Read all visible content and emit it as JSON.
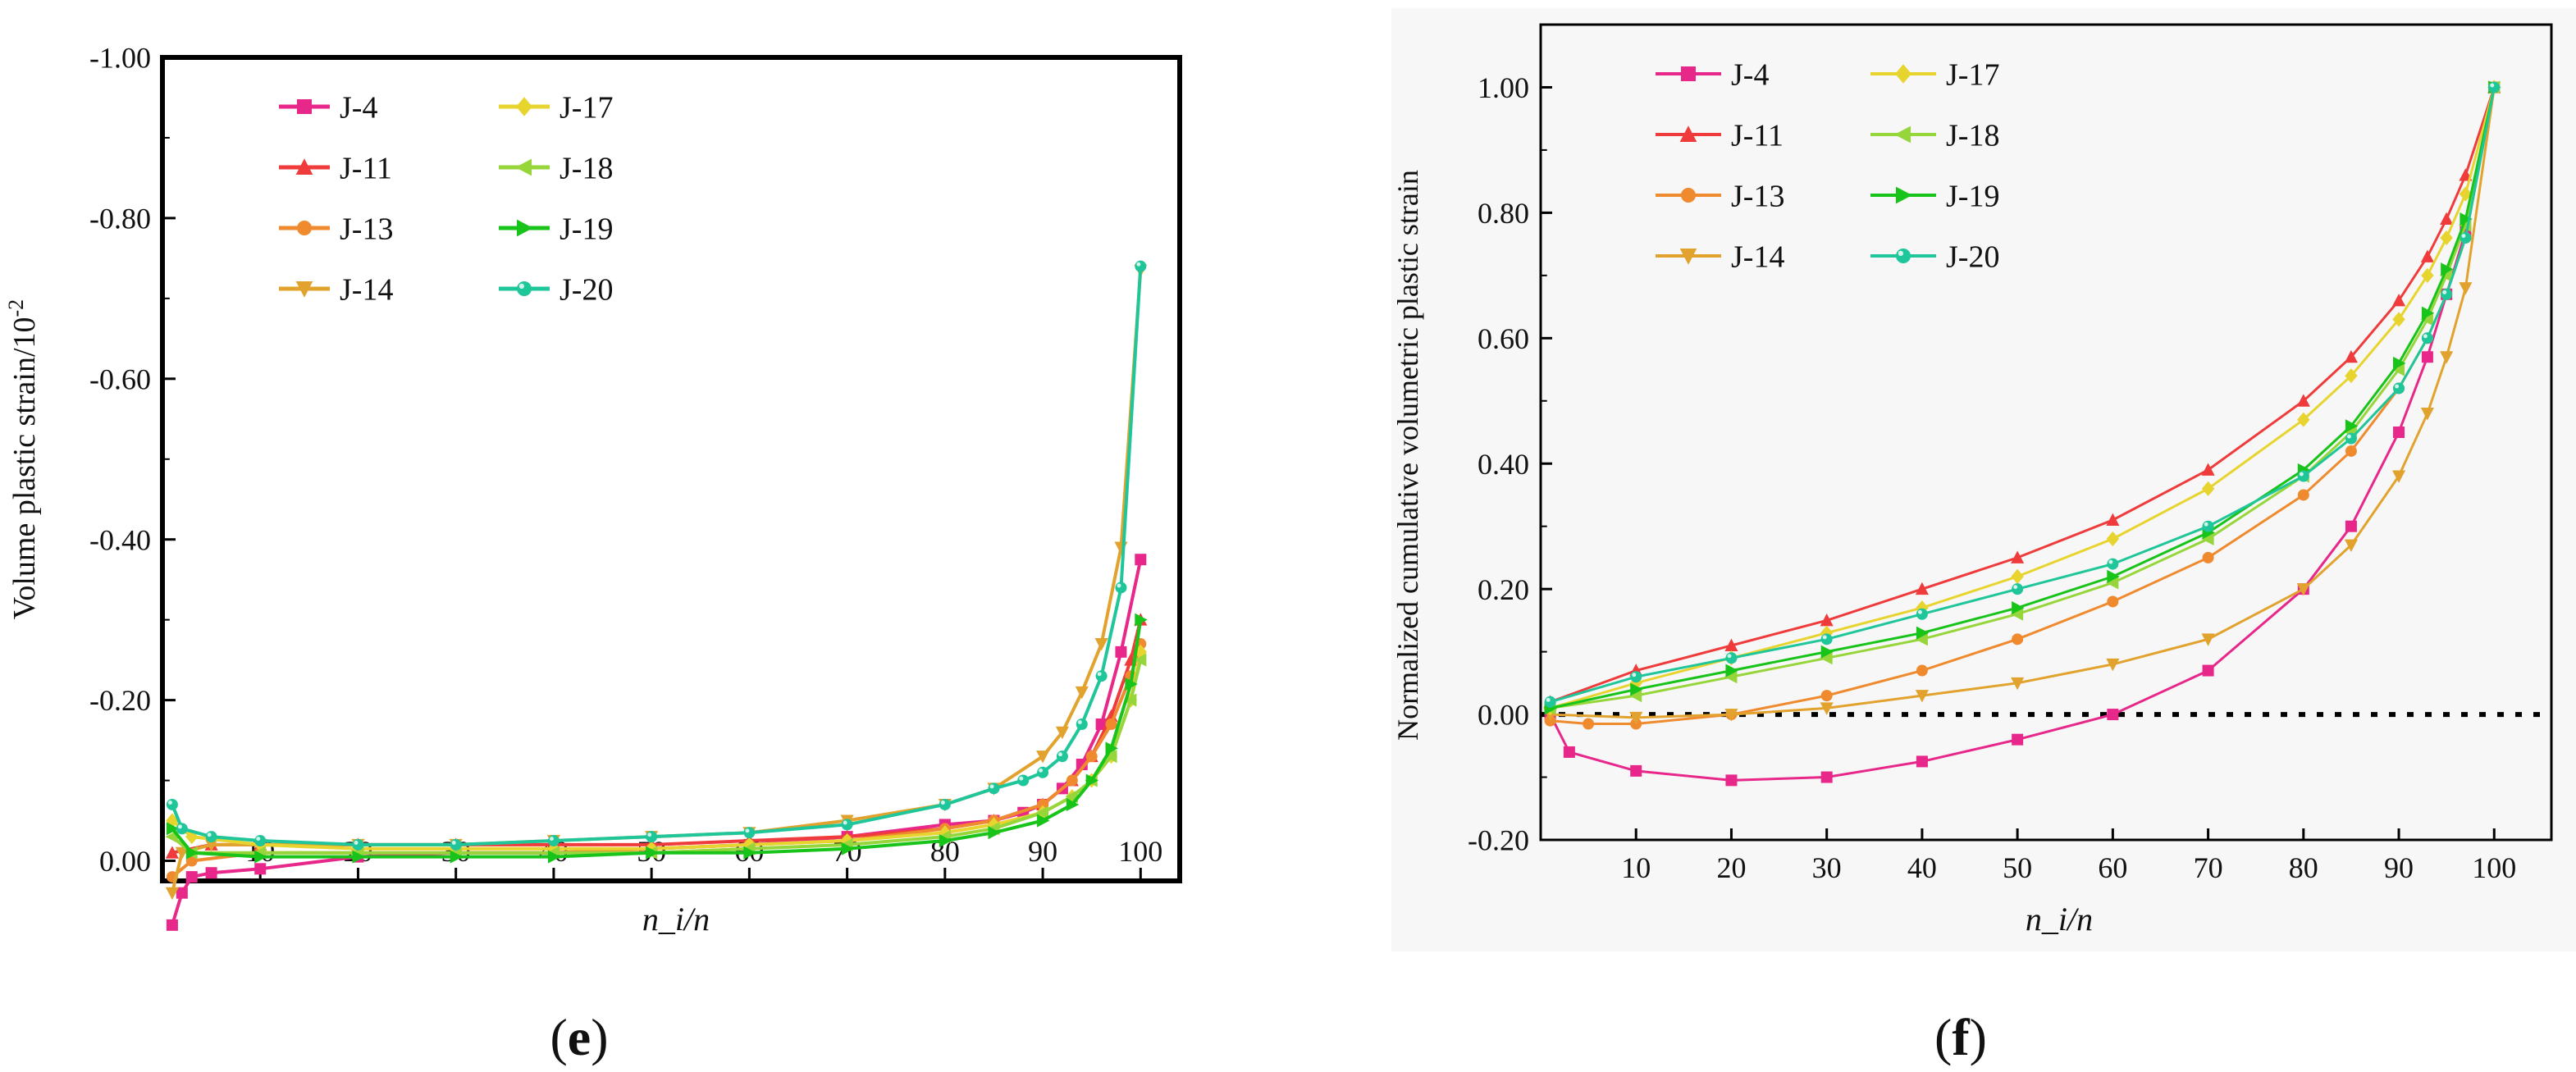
{
  "figure": {
    "panels": [
      {
        "label_text": "e"
      },
      {
        "label_text": "f"
      }
    ]
  },
  "chart_data": [
    {
      "type": "line",
      "panel": "e",
      "xlabel": "n_i/n",
      "ylabel": "Volume plastic  strain/10",
      "ylabel_exponent": "-2",
      "xlim": [
        0,
        104
      ],
      "ylim": [
        0.025,
        -1.0
      ],
      "x_ticks": [
        10,
        20,
        30,
        40,
        50,
        60,
        70,
        80,
        90,
        100
      ],
      "x_tick_labels": [
        "10",
        "20",
        "30",
        "40",
        "50",
        "60",
        "70",
        "80",
        "90",
        "100"
      ],
      "y_ticks": [
        0,
        -0.2,
        -0.4,
        -0.6,
        -0.8,
        -1.0
      ],
      "y_tick_labels": [
        "0.00",
        "-0.20",
        "-0.40",
        "-0.60",
        "-0.80",
        "-1.00"
      ],
      "grid": false,
      "legend_position": "top-left",
      "series": [
        {
          "name": "J-4",
          "color": "#E8278A",
          "marker": "square",
          "x": [
            1,
            2,
            3,
            5,
            10,
            20,
            30,
            40,
            50,
            60,
            70,
            80,
            85,
            88,
            90,
            92,
            94,
            96,
            98,
            100
          ],
          "y": [
            0.08,
            0.04,
            0.02,
            0.015,
            0.01,
            -0.005,
            -0.01,
            -0.01,
            -0.015,
            -0.02,
            -0.03,
            -0.045,
            -0.05,
            -0.06,
            -0.07,
            -0.09,
            -0.12,
            -0.17,
            -0.26,
            -0.375
          ]
        },
        {
          "name": "J-11",
          "color": "#EF3B3B",
          "marker": "triangle-up",
          "x": [
            1,
            5,
            10,
            20,
            30,
            40,
            50,
            60,
            70,
            80,
            85,
            90,
            93,
            95,
            97,
            99,
            100
          ],
          "y": [
            -0.01,
            -0.02,
            -0.02,
            -0.02,
            -0.02,
            -0.02,
            -0.02,
            -0.025,
            -0.03,
            -0.04,
            -0.05,
            -0.07,
            -0.1,
            -0.13,
            -0.18,
            -0.25,
            -0.3
          ]
        },
        {
          "name": "J-13",
          "color": "#F08A2E",
          "marker": "circle",
          "x": [
            1,
            3,
            10,
            20,
            30,
            40,
            50,
            60,
            70,
            80,
            85,
            90,
            93,
            95,
            97,
            99,
            100
          ],
          "y": [
            0.02,
            0.0,
            -0.01,
            -0.01,
            -0.01,
            -0.01,
            -0.015,
            -0.02,
            -0.025,
            -0.04,
            -0.05,
            -0.07,
            -0.1,
            -0.13,
            -0.17,
            -0.23,
            -0.27
          ]
        },
        {
          "name": "J-14",
          "color": "#E2A32E",
          "marker": "triangle-down",
          "x": [
            1,
            2,
            5,
            10,
            20,
            30,
            40,
            50,
            60,
            70,
            80,
            85,
            90,
            92,
            94,
            96,
            98,
            100
          ],
          "y": [
            0.04,
            -0.01,
            -0.02,
            -0.02,
            -0.02,
            -0.02,
            -0.025,
            -0.03,
            -0.035,
            -0.05,
            -0.07,
            -0.09,
            -0.13,
            -0.16,
            -0.21,
            -0.27,
            -0.39,
            -0.735
          ]
        },
        {
          "name": "J-17",
          "color": "#E8D42E",
          "marker": "diamond",
          "x": [
            1,
            3,
            10,
            20,
            30,
            40,
            50,
            60,
            70,
            80,
            85,
            90,
            93,
            95,
            97,
            99,
            100
          ],
          "y": [
            -0.05,
            -0.03,
            -0.02,
            -0.015,
            -0.015,
            -0.015,
            -0.015,
            -0.02,
            -0.025,
            -0.035,
            -0.045,
            -0.06,
            -0.08,
            -0.1,
            -0.13,
            -0.2,
            -0.26
          ]
        },
        {
          "name": "J-18",
          "color": "#96D63A",
          "marker": "triangle-left",
          "x": [
            1,
            3,
            10,
            20,
            30,
            40,
            50,
            60,
            70,
            80,
            85,
            90,
            93,
            95,
            97,
            99,
            100
          ],
          "y": [
            -0.03,
            -0.01,
            -0.01,
            -0.01,
            -0.01,
            -0.01,
            -0.01,
            -0.015,
            -0.02,
            -0.03,
            -0.04,
            -0.06,
            -0.08,
            -0.1,
            -0.13,
            -0.2,
            -0.25
          ]
        },
        {
          "name": "J-19",
          "color": "#18C31A",
          "marker": "triangle-right",
          "x": [
            1,
            3,
            10,
            20,
            30,
            40,
            50,
            60,
            70,
            80,
            85,
            90,
            93,
            95,
            97,
            99,
            100
          ],
          "y": [
            -0.04,
            -0.01,
            -0.005,
            -0.005,
            -0.005,
            -0.005,
            -0.01,
            -0.01,
            -0.015,
            -0.025,
            -0.035,
            -0.05,
            -0.07,
            -0.1,
            -0.14,
            -0.22,
            -0.3
          ]
        },
        {
          "name": "J-20",
          "color": "#1FC69A",
          "marker": "sphere",
          "x": [
            1,
            2,
            5,
            10,
            20,
            30,
            40,
            50,
            60,
            70,
            80,
            85,
            88,
            90,
            92,
            94,
            96,
            98,
            100
          ],
          "y": [
            -0.07,
            -0.04,
            -0.03,
            -0.025,
            -0.02,
            -0.02,
            -0.025,
            -0.03,
            -0.035,
            -0.045,
            -0.07,
            -0.09,
            -0.1,
            -0.11,
            -0.13,
            -0.17,
            -0.23,
            -0.34,
            -0.74
          ]
        }
      ]
    },
    {
      "type": "line",
      "panel": "f",
      "xlabel": "n_i/n",
      "ylabel": "Normalized cumulative volumetric plastic strain",
      "xlim": [
        0,
        106
      ],
      "ylim": [
        -0.2,
        1.1
      ],
      "x_ticks": [
        10,
        20,
        30,
        40,
        50,
        60,
        70,
        80,
        90,
        100
      ],
      "x_tick_labels": [
        "10",
        "20",
        "30",
        "40",
        "50",
        "60",
        "70",
        "80",
        "90",
        "100"
      ],
      "y_ticks": [
        -0.2,
        0.0,
        0.2,
        0.4,
        0.6,
        0.8,
        1.0
      ],
      "y_tick_labels": [
        "-0.20",
        "0.00",
        "0.20",
        "0.40",
        "0.60",
        "0.80",
        "1.00"
      ],
      "grid": false,
      "legend_position": "top-left",
      "reference_line": {
        "y": 0.0,
        "style": "dotted"
      },
      "series": [
        {
          "name": "J-4",
          "color": "#E8278A",
          "marker": "square",
          "x": [
            1,
            3,
            10,
            20,
            30,
            40,
            50,
            60,
            70,
            80,
            85,
            90,
            93,
            95,
            97,
            100
          ],
          "y": [
            0.0,
            -0.06,
            -0.09,
            -0.105,
            -0.1,
            -0.075,
            -0.04,
            0.0,
            0.07,
            0.2,
            0.3,
            0.45,
            0.57,
            0.67,
            0.77,
            1.0
          ]
        },
        {
          "name": "J-11",
          "color": "#EF3B3B",
          "marker": "triangle-up",
          "x": [
            1,
            10,
            20,
            30,
            40,
            50,
            60,
            70,
            80,
            85,
            90,
            93,
            95,
            97,
            100
          ],
          "y": [
            0.02,
            0.07,
            0.11,
            0.15,
            0.2,
            0.25,
            0.31,
            0.39,
            0.5,
            0.57,
            0.66,
            0.73,
            0.79,
            0.86,
            1.0
          ]
        },
        {
          "name": "J-13",
          "color": "#F08A2E",
          "marker": "circle",
          "x": [
            1,
            5,
            10,
            20,
            30,
            40,
            50,
            60,
            70,
            80,
            85,
            90,
            93,
            95,
            97,
            100
          ],
          "y": [
            -0.01,
            -0.015,
            -0.015,
            0.0,
            0.03,
            0.07,
            0.12,
            0.18,
            0.25,
            0.35,
            0.42,
            0.52,
            0.6,
            0.67,
            0.76,
            1.0
          ]
        },
        {
          "name": "J-14",
          "color": "#E2A32E",
          "marker": "triangle-down",
          "x": [
            1,
            10,
            20,
            30,
            40,
            50,
            60,
            70,
            80,
            85,
            90,
            93,
            95,
            97,
            100
          ],
          "y": [
            0.0,
            -0.005,
            0.0,
            0.01,
            0.03,
            0.05,
            0.08,
            0.12,
            0.2,
            0.27,
            0.38,
            0.48,
            0.57,
            0.68,
            1.0
          ]
        },
        {
          "name": "J-17",
          "color": "#E8D42E",
          "marker": "diamond",
          "x": [
            1,
            10,
            20,
            30,
            40,
            50,
            60,
            70,
            80,
            85,
            90,
            93,
            95,
            97,
            100
          ],
          "y": [
            0.01,
            0.05,
            0.09,
            0.13,
            0.17,
            0.22,
            0.28,
            0.36,
            0.47,
            0.54,
            0.63,
            0.7,
            0.76,
            0.83,
            1.0
          ]
        },
        {
          "name": "J-18",
          "color": "#96D63A",
          "marker": "triangle-left",
          "x": [
            1,
            10,
            20,
            30,
            40,
            50,
            60,
            70,
            80,
            85,
            90,
            93,
            95,
            97,
            100
          ],
          "y": [
            0.01,
            0.03,
            0.06,
            0.09,
            0.12,
            0.16,
            0.21,
            0.28,
            0.38,
            0.45,
            0.55,
            0.63,
            0.7,
            0.78,
            1.0
          ]
        },
        {
          "name": "J-19",
          "color": "#18C31A",
          "marker": "triangle-right",
          "x": [
            1,
            10,
            20,
            30,
            40,
            50,
            60,
            70,
            80,
            85,
            90,
            93,
            95,
            97,
            100
          ],
          "y": [
            0.01,
            0.04,
            0.07,
            0.1,
            0.13,
            0.17,
            0.22,
            0.29,
            0.39,
            0.46,
            0.56,
            0.64,
            0.71,
            0.79,
            1.0
          ]
        },
        {
          "name": "J-20",
          "color": "#1FC69A",
          "marker": "sphere",
          "x": [
            1,
            10,
            20,
            30,
            40,
            50,
            60,
            70,
            80,
            85,
            90,
            93,
            95,
            97,
            100
          ],
          "y": [
            0.02,
            0.06,
            0.09,
            0.12,
            0.16,
            0.2,
            0.24,
            0.3,
            0.38,
            0.44,
            0.52,
            0.6,
            0.67,
            0.76,
            1.0
          ]
        }
      ]
    }
  ]
}
